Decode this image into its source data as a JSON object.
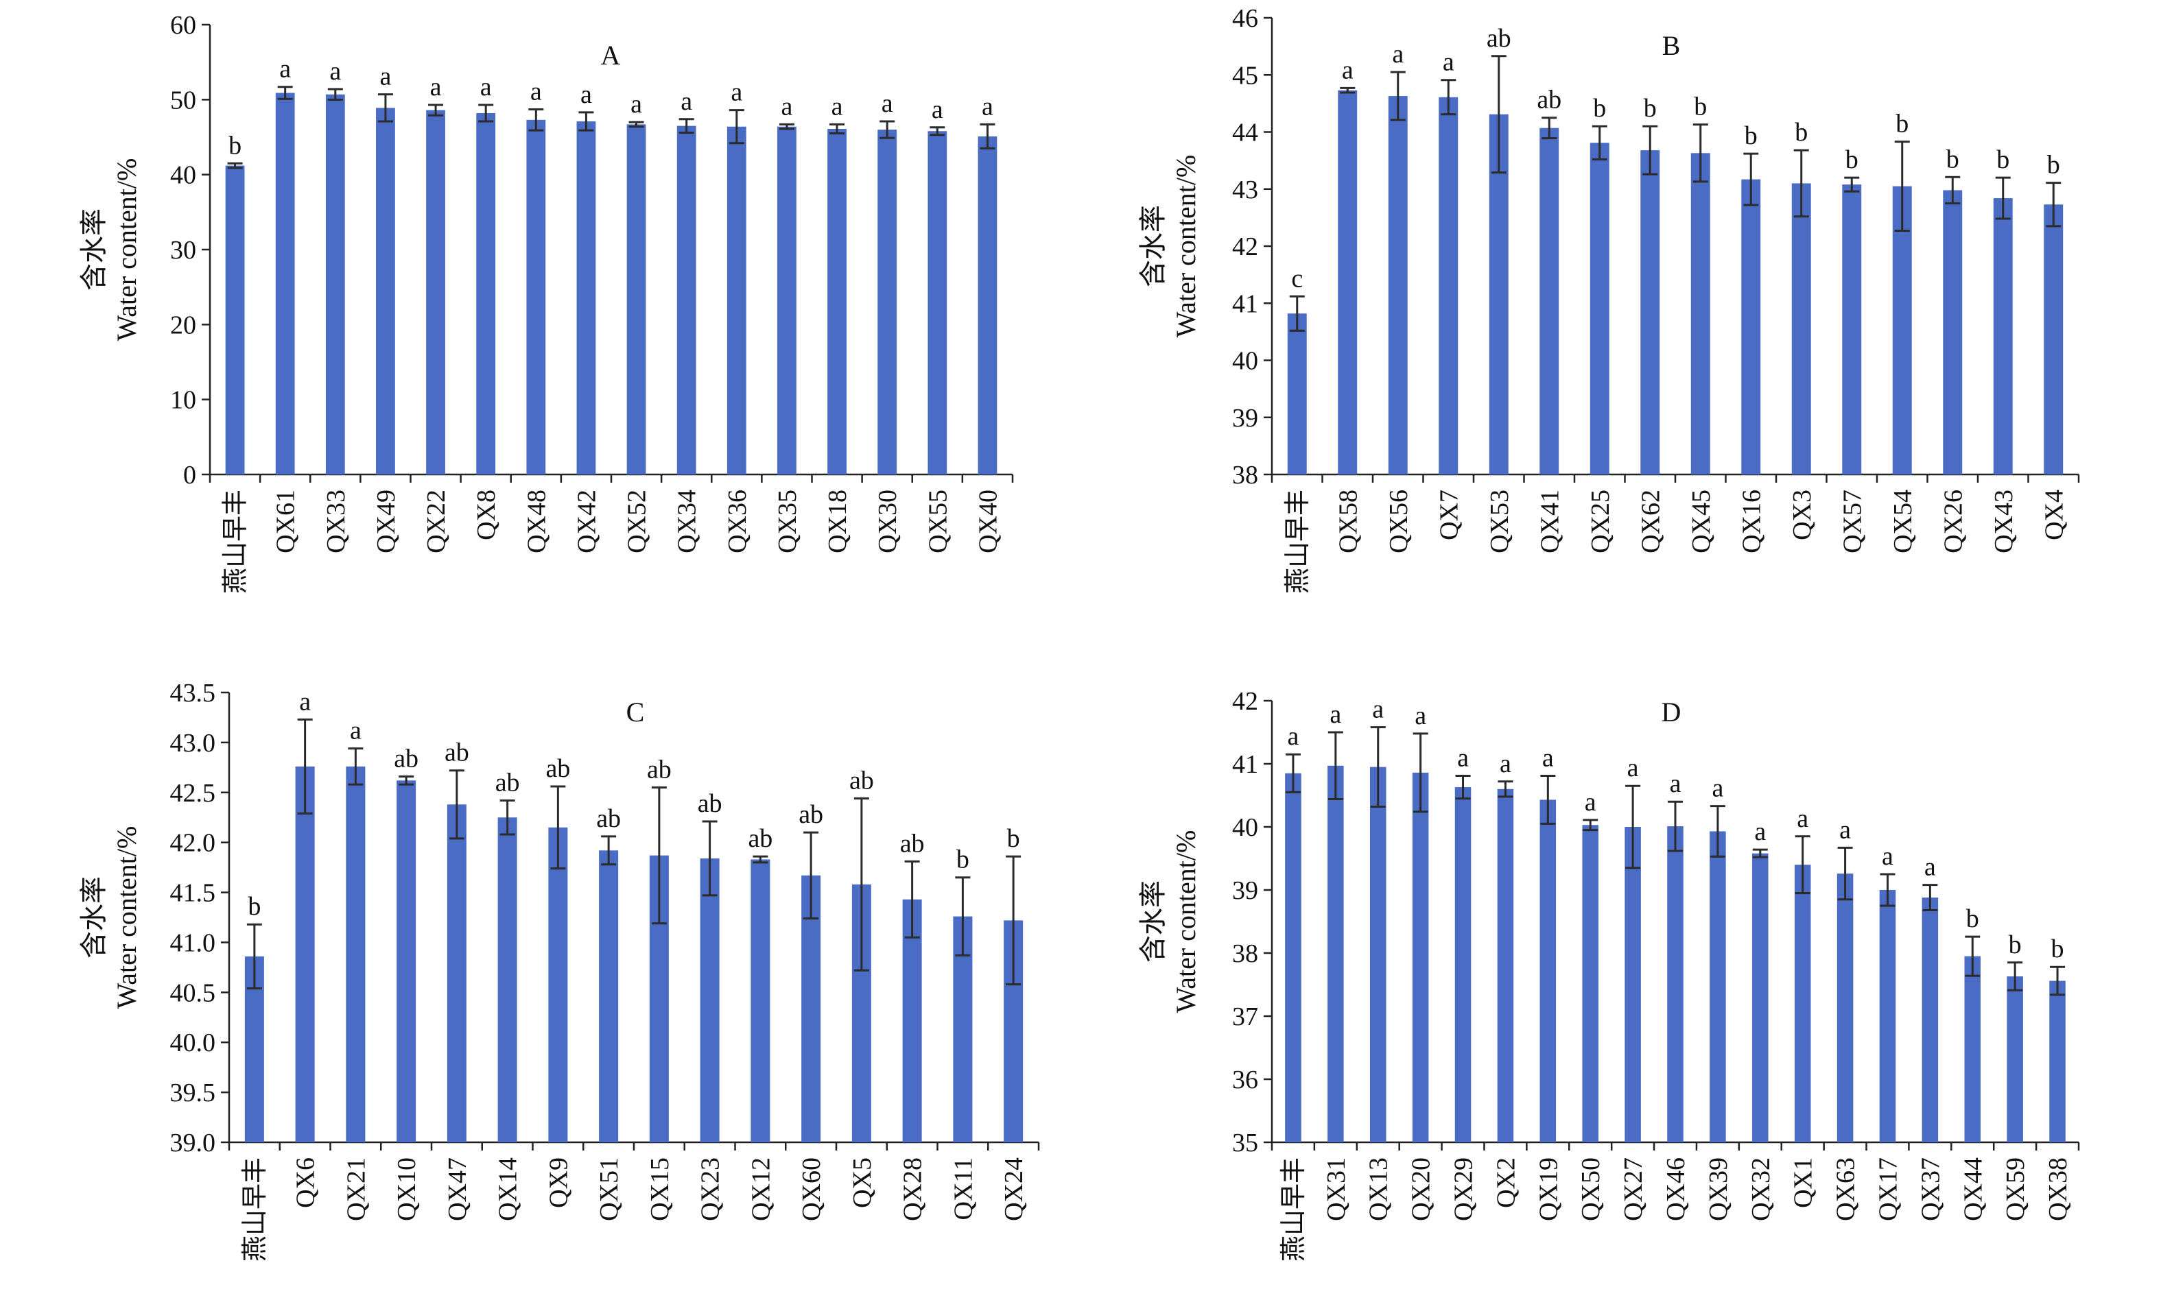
{
  "colors": {
    "bar": "#4a6cc4",
    "error_bar": "#2b2b2b",
    "axis": "#222222",
    "text": "#111111"
  },
  "chart_data": [
    {
      "type": "bar",
      "title": "A",
      "ylabel": [
        "含水率",
        "Water content/%"
      ],
      "ylim": [
        0,
        60
      ],
      "yticks": [
        "0",
        "10",
        "20",
        "30",
        "40",
        "50",
        "60"
      ],
      "categories": [
        "燕山早丰",
        "QX61",
        "QX33",
        "QX49",
        "QX22",
        "QX8",
        "QX48",
        "QX42",
        "QX52",
        "QX34",
        "QX36",
        "QX35",
        "QX18",
        "QX30",
        "QX55",
        "QX40"
      ],
      "values": [
        41.2,
        50.9,
        50.7,
        48.9,
        48.6,
        48.2,
        47.3,
        47.1,
        46.7,
        46.5,
        46.4,
        46.4,
        46.1,
        46.0,
        45.8,
        45.1
      ],
      "errors": [
        0.3,
        0.8,
        0.7,
        1.8,
        0.7,
        1.1,
        1.4,
        1.2,
        0.3,
        0.9,
        2.2,
        0.3,
        0.6,
        1.1,
        0.5,
        1.6
      ],
      "labels": [
        "b",
        "a",
        "a",
        "a",
        "a",
        "a",
        "a",
        "a",
        "a",
        "a",
        "a",
        "a",
        "a",
        "a",
        "a",
        "a"
      ]
    },
    {
      "type": "bar",
      "title": "B",
      "ylabel": [
        "含水率",
        "Water content/%"
      ],
      "ylim": [
        38,
        46
      ],
      "yticks": [
        "38",
        "39",
        "40",
        "41",
        "42",
        "43",
        "44",
        "45",
        "46"
      ],
      "categories": [
        "燕山早丰",
        "QX58",
        "QX56",
        "QX7",
        "QX53",
        "QX41",
        "QX25",
        "QX62",
        "QX45",
        "QX16",
        "QX3",
        "QX57",
        "QX54",
        "QX26",
        "QX43",
        "QX4"
      ],
      "values": [
        40.82,
        44.73,
        44.63,
        44.61,
        44.31,
        44.07,
        43.81,
        43.68,
        43.63,
        43.17,
        43.1,
        43.08,
        43.05,
        42.98,
        42.84,
        42.73
      ],
      "errors": [
        0.3,
        0.04,
        0.42,
        0.3,
        1.02,
        0.18,
        0.29,
        0.42,
        0.5,
        0.45,
        0.58,
        0.12,
        0.78,
        0.23,
        0.36,
        0.38
      ],
      "labels": [
        "c",
        "a",
        "a",
        "a",
        "ab",
        "ab",
        "b",
        "b",
        "b",
        "b",
        "b",
        "b",
        "b",
        "b",
        "b",
        "b"
      ]
    },
    {
      "type": "bar",
      "title": "C",
      "ylabel": [
        "含水率",
        "Water content/%"
      ],
      "ylim": [
        39,
        43.5
      ],
      "yticks": [
        "39.0",
        "39.5",
        "40.0",
        "40.5",
        "41.0",
        "41.5",
        "42.0",
        "42.5",
        "43.0",
        "43.5"
      ],
      "categories": [
        "燕山早丰",
        "QX6",
        "QX21",
        "QX10",
        "QX47",
        "QX14",
        "QX9",
        "QX51",
        "QX15",
        "QX23",
        "QX12",
        "QX60",
        "QX5",
        "QX28",
        "QX11",
        "QX24"
      ],
      "values": [
        40.86,
        42.76,
        42.76,
        42.62,
        42.38,
        42.25,
        42.15,
        41.92,
        41.87,
        41.84,
        41.83,
        41.67,
        41.58,
        41.43,
        41.26,
        41.22
      ],
      "errors": [
        0.32,
        0.47,
        0.18,
        0.04,
        0.34,
        0.17,
        0.41,
        0.14,
        0.68,
        0.37,
        0.03,
        0.43,
        0.86,
        0.38,
        0.39,
        0.64
      ],
      "labels": [
        "b",
        "a",
        "a",
        "ab",
        "ab",
        "ab",
        "ab",
        "ab",
        "ab",
        "ab",
        "ab",
        "ab",
        "ab",
        "ab",
        "b",
        "b"
      ]
    },
    {
      "type": "bar",
      "title": "D",
      "ylabel": [
        "含水率",
        "Water content/%"
      ],
      "ylim": [
        35,
        42
      ],
      "yticks": [
        "35",
        "36",
        "37",
        "38",
        "39",
        "40",
        "41",
        "42"
      ],
      "categories": [
        "燕山早丰",
        "QX31",
        "QX13",
        "QX20",
        "QX29",
        "QX2",
        "QX19",
        "QX50",
        "QX27",
        "QX46",
        "QX39",
        "QX32",
        "QX1",
        "QX63",
        "QX17",
        "QX37",
        "QX44",
        "QX59",
        "QX38"
      ],
      "values": [
        40.85,
        40.97,
        40.95,
        40.86,
        40.63,
        40.6,
        40.43,
        40.03,
        40.0,
        40.01,
        39.93,
        39.58,
        39.4,
        39.26,
        39.0,
        38.88,
        37.95,
        37.63,
        37.56
      ],
      "errors": [
        0.3,
        0.53,
        0.63,
        0.62,
        0.18,
        0.12,
        0.38,
        0.08,
        0.65,
        0.39,
        0.4,
        0.06,
        0.45,
        0.41,
        0.25,
        0.2,
        0.31,
        0.22,
        0.22
      ],
      "labels": [
        "a",
        "a",
        "a",
        "a",
        "a",
        "a",
        "a",
        "a",
        "a",
        "a",
        "a",
        "a",
        "a",
        "a",
        "a",
        "a",
        "b",
        "b",
        "b"
      ]
    }
  ]
}
